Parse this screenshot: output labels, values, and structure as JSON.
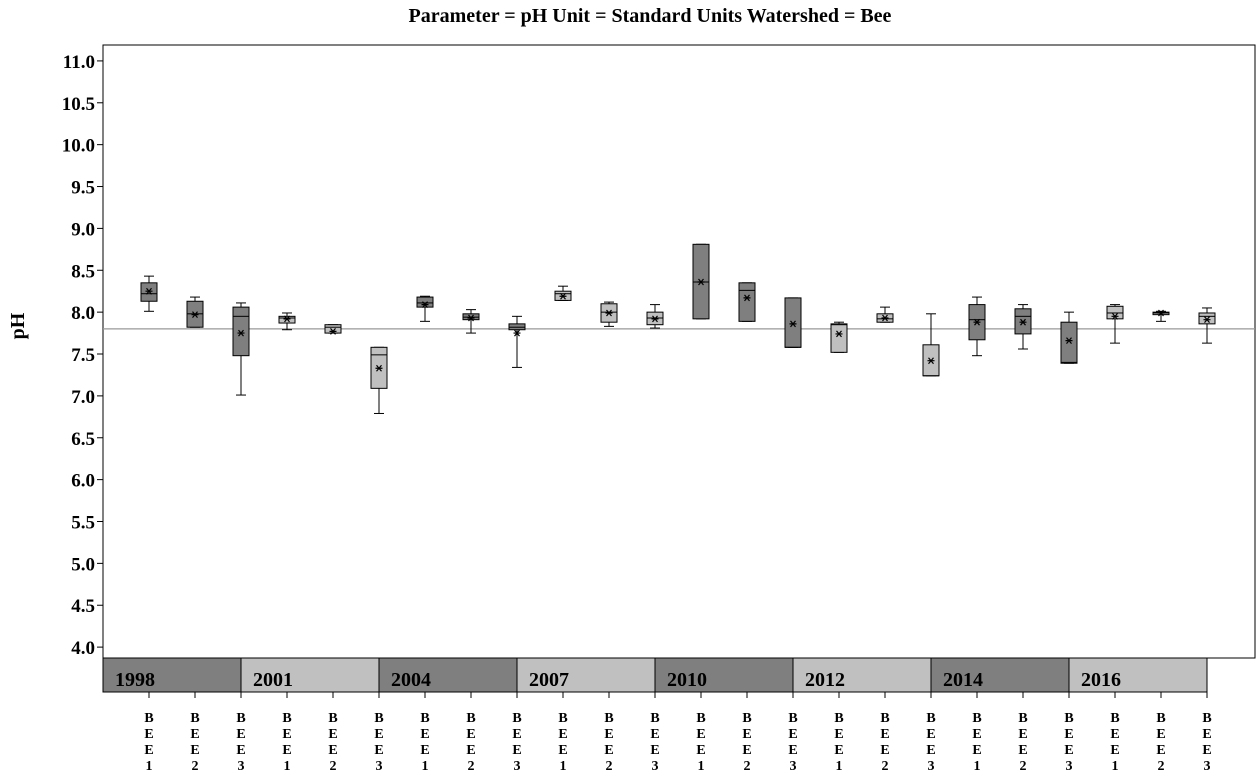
{
  "chart_data": {
    "type": "box",
    "title": "Parameter = pH  Unit = Standard Units  Watershed = Bee",
    "ylabel": "pH",
    "ylim": [
      3.87,
      11.19
    ],
    "yticks": [
      {
        "value": 4,
        "label": "4.0"
      },
      4.5,
      {
        "value": 5,
        "label": "5.0"
      },
      5.5,
      {
        "value": 6,
        "label": "6.0"
      },
      6.5,
      {
        "value": 7,
        "label": "7.0"
      },
      7.5,
      {
        "value": 8,
        "label": "8.0"
      },
      8.5,
      {
        "value": 9,
        "label": "9.0"
      },
      9.5,
      {
        "value": 10,
        "label": "10.0"
      },
      10.5,
      {
        "value": 11,
        "label": "11.0"
      }
    ],
    "reference_line": 7.8,
    "groups": [
      {
        "label": "1998",
        "color": "#7f7f7f"
      },
      {
        "label": "2001",
        "color": "#c0c0c0"
      },
      {
        "label": "2004",
        "color": "#7f7f7f"
      },
      {
        "label": "2007",
        "color": "#c0c0c0"
      },
      {
        "label": "2010",
        "color": "#7f7f7f"
      },
      {
        "label": "2012",
        "color": "#c0c0c0"
      },
      {
        "label": "2014",
        "color": "#7f7f7f"
      },
      {
        "label": "2016",
        "color": "#c0c0c0"
      }
    ],
    "categories": [
      "BEE1",
      "BEE2",
      "BEE3",
      "BEE1",
      "BEE2",
      "BEE3",
      "BEE1",
      "BEE2",
      "BEE3",
      "BEE1",
      "BEE2",
      "BEE3",
      "BEE1",
      "BEE2",
      "BEE3",
      "BEE1",
      "BEE2",
      "BEE3",
      "BEE1",
      "BEE2",
      "BEE3",
      "BEE1",
      "BEE2",
      "BEE3"
    ],
    "boxes": [
      {
        "low": 8.01,
        "q1": 8.13,
        "median": 8.22,
        "q3": 8.35,
        "high": 8.43,
        "mean": 8.25
      },
      {
        "low": 7.82,
        "q1": 7.82,
        "median": 7.98,
        "q3": 8.13,
        "high": 8.18,
        "mean": 7.97
      },
      {
        "low": 7.01,
        "q1": 7.48,
        "median": 7.95,
        "q3": 8.06,
        "high": 8.11,
        "mean": 7.75
      },
      {
        "low": 7.79,
        "q1": 7.87,
        "median": 7.93,
        "q3": 7.95,
        "high": 7.99,
        "mean": 7.92
      },
      {
        "low": 7.75,
        "q1": 7.75,
        "median": 7.82,
        "q3": 7.85,
        "high": 7.85,
        "mean": 7.77
      },
      {
        "low": 6.79,
        "q1": 7.09,
        "median": 7.49,
        "q3": 7.58,
        "high": 7.58,
        "mean": 7.33
      },
      {
        "low": 7.89,
        "q1": 8.06,
        "median": 8.11,
        "q3": 8.18,
        "high": 8.19,
        "mean": 8.09
      },
      {
        "low": 7.75,
        "q1": 7.91,
        "median": 7.94,
        "q3": 7.98,
        "high": 8.03,
        "mean": 7.93
      },
      {
        "low": 7.34,
        "q1": 7.79,
        "median": 7.82,
        "q3": 7.86,
        "high": 7.95,
        "mean": 7.75
      },
      {
        "low": 8.14,
        "q1": 8.14,
        "median": 8.22,
        "q3": 8.25,
        "high": 8.31,
        "mean": 8.19
      },
      {
        "low": 7.83,
        "q1": 7.88,
        "median": 8.0,
        "q3": 8.1,
        "high": 8.12,
        "mean": 7.99
      },
      {
        "low": 7.81,
        "q1": 7.85,
        "median": 7.93,
        "q3": 8.0,
        "high": 8.09,
        "mean": 7.92
      },
      {
        "low": 7.92,
        "q1": 7.92,
        "median": 8.36,
        "q3": 8.81,
        "high": 8.81,
        "mean": 8.36
      },
      {
        "low": 7.89,
        "q1": 7.89,
        "median": 8.26,
        "q3": 8.35,
        "high": 8.35,
        "mean": 8.17
      },
      {
        "low": 7.58,
        "q1": 7.58,
        "median": 7.58,
        "q3": 8.17,
        "high": 8.17,
        "mean": 7.86
      },
      {
        "low": 7.52,
        "q1": 7.52,
        "median": 7.85,
        "q3": 7.86,
        "high": 7.88,
        "mean": 7.74
      },
      {
        "low": 7.88,
        "q1": 7.88,
        "median": 7.92,
        "q3": 7.98,
        "high": 8.06,
        "mean": 7.93
      },
      {
        "low": 7.24,
        "q1": 7.24,
        "median": 7.24,
        "q3": 7.61,
        "high": 7.98,
        "mean": 7.42
      },
      {
        "low": 7.48,
        "q1": 7.67,
        "median": 7.91,
        "q3": 8.09,
        "high": 8.18,
        "mean": 7.88
      },
      {
        "low": 7.56,
        "q1": 7.74,
        "median": 7.95,
        "q3": 8.04,
        "high": 8.09,
        "mean": 7.88
      },
      {
        "low": 7.39,
        "q1": 7.39,
        "median": 7.4,
        "q3": 7.88,
        "high": 8.0,
        "mean": 7.66
      },
      {
        "low": 7.63,
        "q1": 7.92,
        "median": 7.99,
        "q3": 8.07,
        "high": 8.09,
        "mean": 7.95
      },
      {
        "low": 7.89,
        "q1": 7.97,
        "median": 7.99,
        "q3": 8.0,
        "high": 8.01,
        "mean": 7.99
      },
      {
        "low": 7.63,
        "q1": 7.86,
        "median": 7.95,
        "q3": 7.99,
        "high": 8.05,
        "mean": 7.91
      }
    ]
  }
}
